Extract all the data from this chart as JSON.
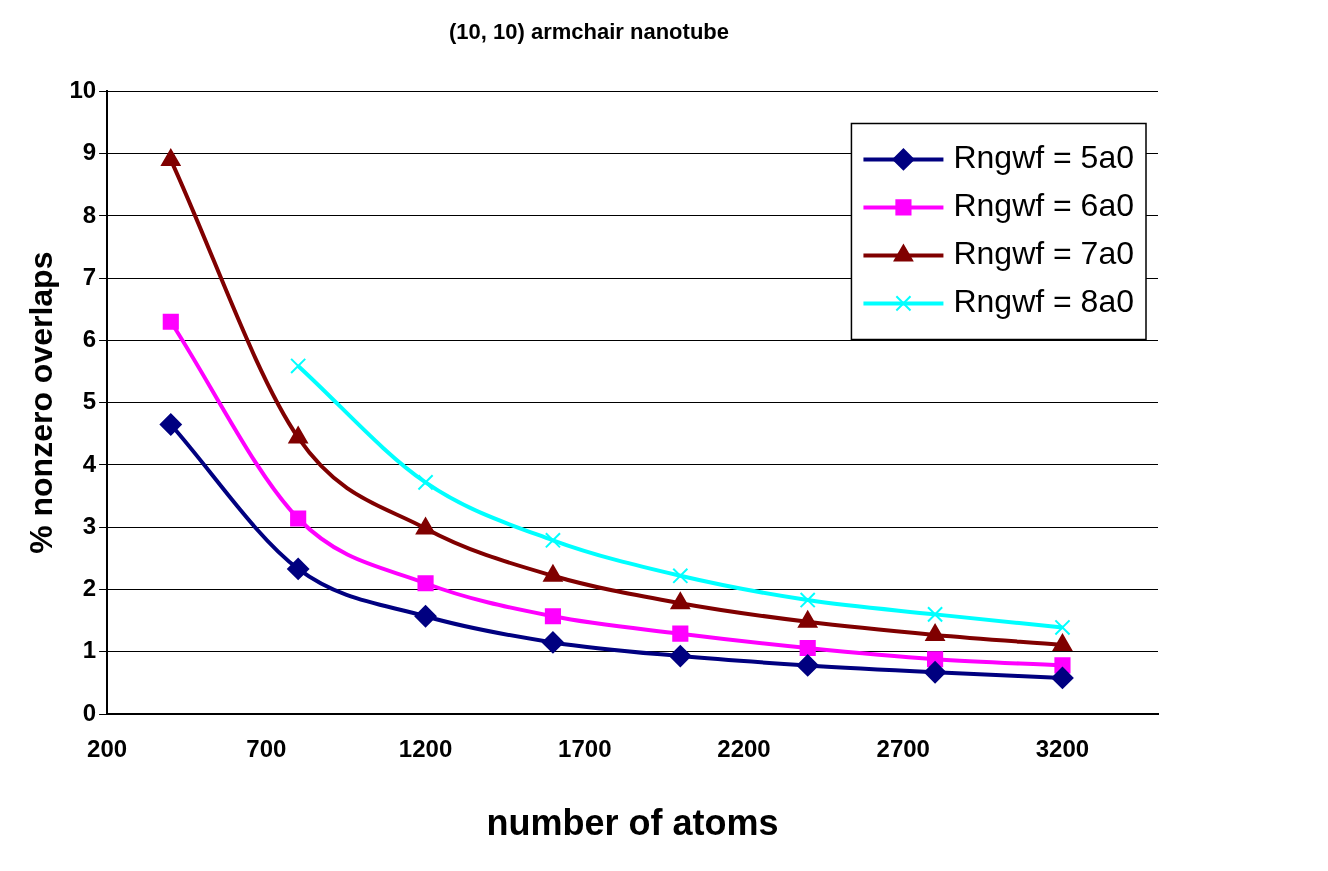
{
  "chart_data": {
    "type": "line",
    "title": "(10, 10) armchair nanotube",
    "xlabel": "number of atoms",
    "ylabel": "% nonzero overlaps",
    "x": [
      400,
      800,
      1200,
      1600,
      2000,
      2400,
      2800,
      3200
    ],
    "series": [
      {
        "name": "Rngwf = 5a0",
        "color": "#000080",
        "marker": "diamond",
        "values": [
          4.65,
          2.33,
          1.57,
          1.15,
          0.93,
          0.78,
          0.67,
          0.58
        ]
      },
      {
        "name": "Rngwf = 6a0",
        "color": "#ff00ff",
        "marker": "square",
        "values": [
          6.3,
          3.14,
          2.1,
          1.57,
          1.29,
          1.06,
          0.88,
          0.78
        ]
      },
      {
        "name": "Rngwf = 7a0",
        "color": "#800000",
        "marker": "triangle",
        "values": [
          8.9,
          4.44,
          2.98,
          2.22,
          1.78,
          1.48,
          1.27,
          1.11
        ]
      },
      {
        "name": "Rngwf = 8a0",
        "color": "#00ffff",
        "marker": "cross",
        "values": [
          null,
          5.59,
          3.72,
          2.79,
          2.22,
          1.83,
          1.6,
          1.39
        ]
      }
    ],
    "xlim": [
      200,
      3500
    ],
    "xticks": [
      200,
      700,
      1200,
      1700,
      2200,
      2700,
      3200
    ],
    "ylim": [
      0,
      10
    ],
    "yticks": [
      0,
      1,
      2,
      3,
      4,
      5,
      6,
      7,
      8,
      9,
      10
    ],
    "grid": "y",
    "legend": "top right",
    "line_style": "solid"
  }
}
